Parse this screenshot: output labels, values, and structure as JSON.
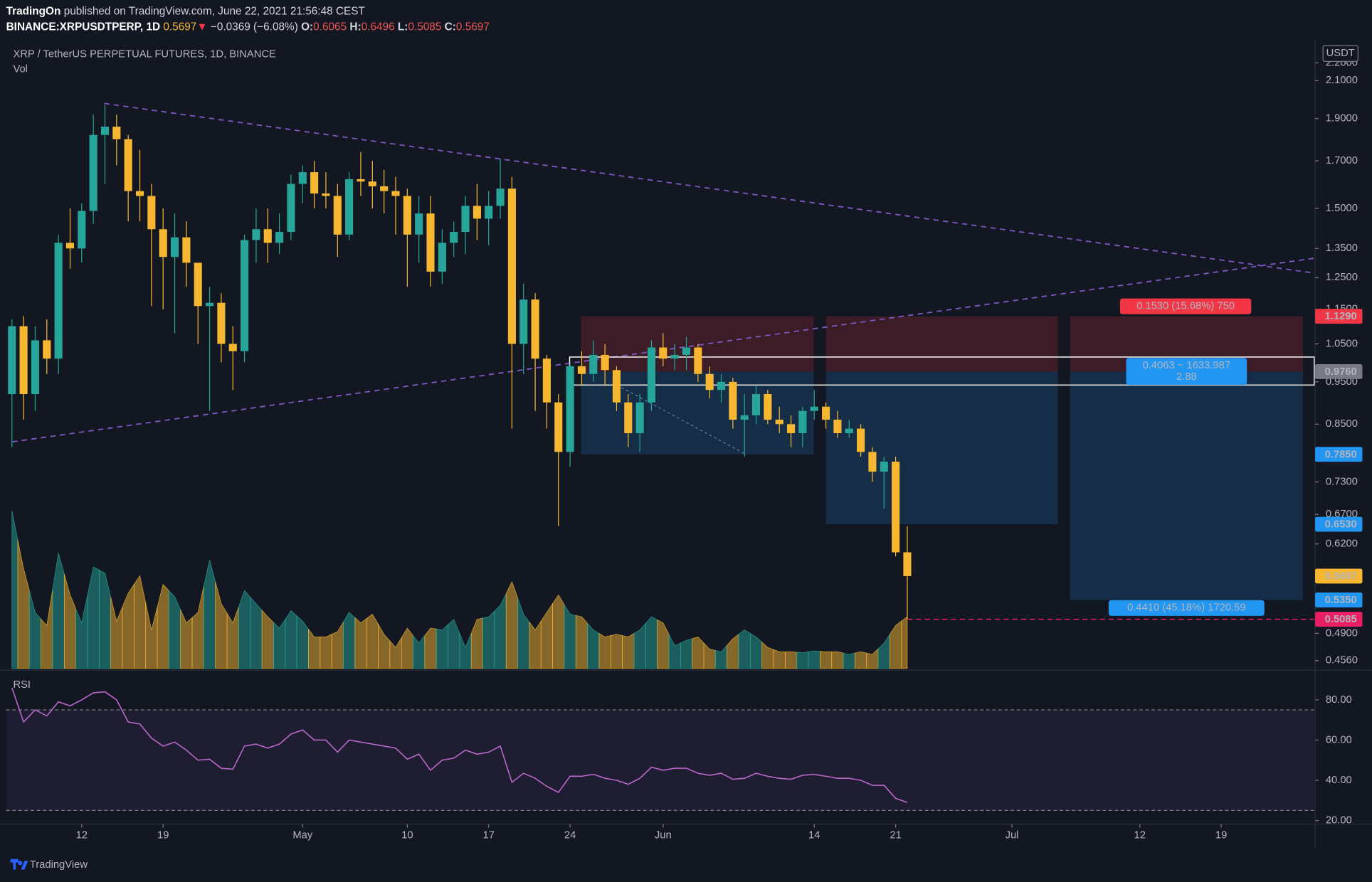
{
  "header": {
    "author": "TradingOn",
    "published": "published on TradingView.com, June 22, 2021 21:56:48 CEST",
    "symbol": "BINANCE:XRPUSDTPERP, 1D",
    "last": "0.5697",
    "arrow": "▼",
    "change": "−0.0369 (−6.08%)",
    "ohlc": [
      {
        "key": "O:",
        "value": "0.6065"
      },
      {
        "key": "H:",
        "value": "0.6496"
      },
      {
        "key": "L:",
        "value": "0.5085"
      },
      {
        "key": "C:",
        "value": "0.5697"
      }
    ]
  },
  "footer": {
    "brand": "TradingView"
  },
  "chart_data": {
    "type": "candlestick",
    "title": "XRP / TetherUS PERPETUAL FUTURES, 1D, BINANCE",
    "x": [
      "2021-04-06",
      "2021-04-07",
      "2021-04-08",
      "2021-04-09",
      "2021-04-10",
      "2021-04-11",
      "2021-04-12",
      "2021-04-13",
      "2021-04-14",
      "2021-04-15",
      "2021-04-16",
      "2021-04-17",
      "2021-04-18",
      "2021-04-19",
      "2021-04-20",
      "2021-04-21",
      "2021-04-22",
      "2021-04-23",
      "2021-04-24",
      "2021-04-25",
      "2021-04-26",
      "2021-04-27",
      "2021-04-28",
      "2021-04-29",
      "2021-04-30",
      "2021-05-01",
      "2021-05-02",
      "2021-05-03",
      "2021-05-04",
      "2021-05-05",
      "2021-05-06",
      "2021-05-07",
      "2021-05-08",
      "2021-05-09",
      "2021-05-10",
      "2021-05-11",
      "2021-05-12",
      "2021-05-13",
      "2021-05-14",
      "2021-05-15",
      "2021-05-16",
      "2021-05-17",
      "2021-05-18",
      "2021-05-19",
      "2021-05-20",
      "2021-05-21",
      "2021-05-22",
      "2021-05-23",
      "2021-05-24",
      "2021-05-25",
      "2021-05-26",
      "2021-05-27",
      "2021-05-28",
      "2021-05-29",
      "2021-05-30",
      "2021-05-31",
      "2021-06-01",
      "2021-06-02",
      "2021-06-03",
      "2021-06-04",
      "2021-06-05",
      "2021-06-06",
      "2021-06-07",
      "2021-06-08",
      "2021-06-09",
      "2021-06-10",
      "2021-06-11",
      "2021-06-12",
      "2021-06-13",
      "2021-06-14",
      "2021-06-15",
      "2021-06-16",
      "2021-06-17",
      "2021-06-18",
      "2021-06-19",
      "2021-06-20",
      "2021-06-21",
      "2021-06-22"
    ],
    "open": [
      0.92,
      1.1,
      0.92,
      1.06,
      1.01,
      1.37,
      1.35,
      1.49,
      1.82,
      1.86,
      1.8,
      1.57,
      1.55,
      1.42,
      1.32,
      1.39,
      1.3,
      1.16,
      1.17,
      1.05,
      1.03,
      1.38,
      1.42,
      1.37,
      1.41,
      1.6,
      1.65,
      1.56,
      1.55,
      1.4,
      1.62,
      1.61,
      1.59,
      1.57,
      1.55,
      1.4,
      1.48,
      1.27,
      1.37,
      1.41,
      1.51,
      1.46,
      1.51,
      1.58,
      1.05,
      1.18,
      1.01,
      0.9,
      0.79,
      0.99,
      0.97,
      1.02,
      0.98,
      0.9,
      0.83,
      0.9,
      1.04,
      1.01,
      1.02,
      1.04,
      0.97,
      0.93,
      0.95,
      0.86,
      0.87,
      0.92,
      0.86,
      0.85,
      0.83,
      0.88,
      0.89,
      0.86,
      0.83,
      0.84,
      0.79,
      0.75,
      0.77,
      0.6065
    ],
    "high": [
      1.12,
      1.13,
      1.1,
      1.12,
      1.4,
      1.5,
      1.52,
      1.92,
      1.97,
      1.92,
      1.82,
      1.75,
      1.6,
      1.5,
      1.48,
      1.45,
      1.3,
      1.22,
      1.2,
      1.1,
      1.4,
      1.5,
      1.5,
      1.48,
      1.64,
      1.68,
      1.7,
      1.65,
      1.6,
      1.65,
      1.74,
      1.7,
      1.66,
      1.63,
      1.58,
      1.55,
      1.55,
      1.42,
      1.45,
      1.55,
      1.6,
      1.57,
      1.71,
      1.63,
      1.23,
      1.2,
      1.02,
      0.92,
      1.0,
      1.03,
      1.06,
      1.05,
      0.99,
      0.92,
      0.92,
      1.06,
      1.08,
      1.05,
      1.07,
      1.05,
      0.99,
      0.97,
      0.96,
      0.92,
      0.94,
      0.93,
      0.89,
      0.87,
      0.89,
      0.93,
      0.9,
      0.88,
      0.86,
      0.85,
      0.8,
      0.78,
      0.78,
      0.6496
    ],
    "low": [
      0.8,
      0.86,
      0.88,
      0.97,
      0.97,
      1.28,
      1.3,
      1.44,
      1.6,
      1.68,
      1.45,
      1.45,
      1.16,
      1.15,
      1.08,
      1.22,
      1.05,
      0.88,
      1.0,
      0.93,
      1.0,
      1.3,
      1.3,
      1.33,
      1.38,
      1.52,
      1.5,
      1.5,
      1.32,
      1.38,
      1.55,
      1.5,
      1.48,
      1.4,
      1.22,
      1.3,
      1.22,
      1.23,
      1.32,
      1.33,
      1.38,
      1.36,
      1.46,
      0.84,
      0.97,
      0.88,
      0.84,
      0.65,
      0.76,
      0.94,
      0.95,
      0.94,
      0.88,
      0.8,
      0.79,
      0.88,
      0.99,
      0.98,
      0.98,
      0.95,
      0.91,
      0.9,
      0.84,
      0.78,
      0.85,
      0.85,
      0.83,
      0.8,
      0.8,
      0.86,
      0.84,
      0.82,
      0.82,
      0.78,
      0.73,
      0.68,
      0.6,
      0.5085
    ],
    "close": [
      1.1,
      0.92,
      1.06,
      1.01,
      1.37,
      1.35,
      1.49,
      1.82,
      1.86,
      1.8,
      1.57,
      1.55,
      1.42,
      1.32,
      1.39,
      1.3,
      1.16,
      1.17,
      1.05,
      1.03,
      1.38,
      1.42,
      1.37,
      1.41,
      1.6,
      1.65,
      1.56,
      1.55,
      1.4,
      1.62,
      1.61,
      1.59,
      1.57,
      1.55,
      1.4,
      1.48,
      1.27,
      1.37,
      1.41,
      1.51,
      1.46,
      1.51,
      1.58,
      1.05,
      1.18,
      1.01,
      0.9,
      0.79,
      0.99,
      0.97,
      1.02,
      0.98,
      0.9,
      0.83,
      0.9,
      1.04,
      1.01,
      1.02,
      1.04,
      0.97,
      0.93,
      0.95,
      0.86,
      0.87,
      0.92,
      0.86,
      0.85,
      0.83,
      0.88,
      0.89,
      0.86,
      0.83,
      0.84,
      0.79,
      0.75,
      0.77,
      0.6065,
      0.5697
    ],
    "up_color": "#26a69a",
    "down_color": "#f7b731",
    "xlim": [
      "2021-04-05T12:00:00Z",
      "2021-07-27T00:00:00Z"
    ],
    "xticks": [
      {
        "value": "2021-04-12",
        "label": "12"
      },
      {
        "value": "2021-04-19",
        "label": "19"
      },
      {
        "value": "2021-05-01",
        "label": "May"
      },
      {
        "value": "2021-05-10",
        "label": "10"
      },
      {
        "value": "2021-05-17",
        "label": "17"
      },
      {
        "value": "2021-05-24",
        "label": "24"
      },
      {
        "value": "2021-06-01",
        "label": "Jun"
      },
      {
        "value": "2021-06-14",
        "label": "14"
      },
      {
        "value": "2021-06-21",
        "label": "21"
      },
      {
        "value": "2021-07-01",
        "label": "Jul"
      },
      {
        "value": "2021-07-12",
        "label": "12"
      },
      {
        "value": "2021-07-19",
        "label": "19"
      }
    ],
    "ylim": [
      0.4468,
      2.345
    ],
    "log_y": true,
    "grid": false,
    "currency": "USDT",
    "yticks": [
      {
        "value": 2.2,
        "label": "2.2000"
      },
      {
        "value": 2.1,
        "label": "2.1000"
      },
      {
        "value": 1.9,
        "label": "1.9000"
      },
      {
        "value": 1.7,
        "label": "1.7000"
      },
      {
        "value": 1.5,
        "label": "1.5000"
      },
      {
        "value": 1.35,
        "label": "1.3500"
      },
      {
        "value": 1.25,
        "label": "1.2500"
      },
      {
        "value": 1.15,
        "label": "1.1500"
      },
      {
        "value": 1.05,
        "label": "1.0500"
      },
      {
        "value": 0.95,
        "label": "0.9500"
      },
      {
        "value": 0.85,
        "label": "0.8500"
      },
      {
        "value": 0.73,
        "label": "0.7300"
      },
      {
        "value": 0.67,
        "label": "0.6700"
      },
      {
        "value": 0.62,
        "label": "0.6200"
      },
      {
        "value": 0.49,
        "label": "0.4900"
      },
      {
        "value": 0.456,
        "label": "0.4560"
      }
    ],
    "price_badges": [
      {
        "value": 1.129,
        "label": "1.1290",
        "color": "#f23645",
        "text_color": "#ffffff"
      },
      {
        "value": 0.976,
        "label": "0.9760",
        "color": "#787b86",
        "text_color": "#ffffff"
      },
      {
        "value": 0.785,
        "label": "0.7850",
        "color": "#2196f3",
        "text_color": "#ffffff"
      },
      {
        "value": 0.653,
        "label": "0.6530",
        "color": "#2196f3",
        "text_color": "#ffffff"
      },
      {
        "value": 0.5697,
        "label": "0.5697",
        "color": "#f7b731",
        "text_color": "#131722"
      },
      {
        "value": 0.535,
        "label": "0.5350",
        "color": "#2196f3",
        "text_color": "#ffffff"
      },
      {
        "value": 0.5085,
        "label": "0.5085",
        "color": "#e91e63",
        "text_color": "#ffffff"
      }
    ],
    "annotations": [
      {
        "lines": [
          "0.1530 (15.68%) 750"
        ],
        "color": "#f23645"
      },
      {
        "lines": [
          "0.4063 ~ 1633.987",
          "2.88"
        ],
        "color": "#2196f3"
      },
      {
        "lines": [
          "0.4410 (45.18%) 1720.59"
        ],
        "color": "#2196f3"
      }
    ],
    "volume": {
      "name": "Vol",
      "values": [
        180,
        114,
        64,
        49,
        132,
        84,
        52,
        116,
        109,
        54,
        86,
        106,
        44,
        96,
        82,
        52,
        64,
        124,
        74,
        52,
        89,
        74,
        59,
        46,
        66,
        54,
        36,
        36,
        42,
        64,
        52,
        62,
        39,
        24,
        46,
        29,
        46,
        44,
        56,
        24,
        56,
        59,
        72,
        99,
        62,
        44,
        64,
        84,
        62,
        59,
        44,
        36,
        39,
        36,
        44,
        59,
        52,
        26,
        32,
        36,
        22,
        19,
        34,
        44,
        36,
        24,
        19,
        19,
        18,
        20,
        19,
        19,
        16,
        19,
        16,
        29,
        49,
        59
      ]
    },
    "rsi": {
      "name": "RSI",
      "color": "#ba68c8",
      "values": [
        86,
        69,
        75,
        72,
        79,
        77,
        80,
        83.5,
        84,
        80,
        69,
        68,
        61,
        57,
        59,
        55,
        50,
        50.5,
        46,
        45.5,
        57,
        58,
        56,
        58,
        63,
        65,
        60,
        60,
        54,
        60,
        59,
        58,
        57,
        56,
        50.5,
        53,
        45,
        50,
        51,
        55,
        53,
        54,
        57,
        39,
        43.5,
        41,
        37,
        34,
        42,
        42,
        43,
        41,
        40,
        38,
        41,
        46.5,
        45,
        46,
        46,
        43.5,
        42.5,
        43.5,
        40.5,
        41,
        43.5,
        42,
        41,
        40.5,
        42.5,
        43,
        42,
        41,
        41,
        40,
        37.5,
        37.5,
        31,
        29
      ],
      "ylim": [
        19.1,
        93.9
      ],
      "bands": [
        25,
        75
      ],
      "yticks": [
        {
          "value": 80,
          "label": "80.00"
        },
        {
          "value": 60,
          "label": "60.00"
        },
        {
          "value": 40,
          "label": "40.00"
        },
        {
          "value": 20,
          "label": "20.00"
        }
      ]
    }
  }
}
